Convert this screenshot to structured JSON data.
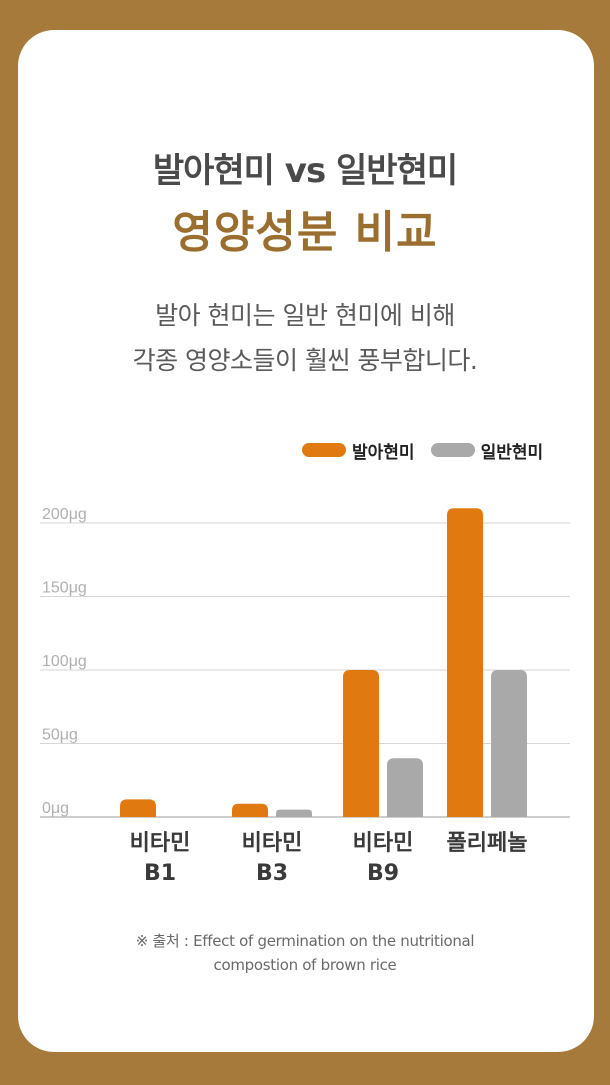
{
  "header": {
    "title_line1": "발아현미 vs 일반현미",
    "title_line2": "영양성분 비교",
    "subtitle_line1": "발아 현미는 일반 현미에 비해",
    "subtitle_line2": "각종 영양소들이 훨씬 풍부합니다."
  },
  "source": {
    "line1": "※ 출처 : Effect of germination on the nutritional",
    "line2": "compostion of brown rice"
  },
  "colors": {
    "background": "#a67a3b",
    "germinated": "#e07a10",
    "regular": "#a9a9a9",
    "title_accent": "#9a6e2f"
  },
  "chart_data": {
    "type": "bar",
    "categories": [
      [
        "비타민",
        "B1"
      ],
      [
        "비타민",
        "B3"
      ],
      [
        "비타민",
        "B9"
      ],
      [
        "폴리페놀"
      ]
    ],
    "series": [
      {
        "name": "발아현미",
        "color": "#e07a10",
        "values": [
          12,
          9,
          100,
          210
        ]
      },
      {
        "name": "일반현미",
        "color": "#a9a9a9",
        "values": [
          0,
          5,
          40,
          100
        ]
      }
    ],
    "yticks": [
      "0μg",
      "50μg",
      "100μg",
      "150μg",
      "200μg"
    ],
    "ytick_values": [
      0,
      50,
      100,
      150,
      200
    ],
    "ylim": [
      0,
      200
    ],
    "grid": true,
    "legend": "top-right"
  }
}
